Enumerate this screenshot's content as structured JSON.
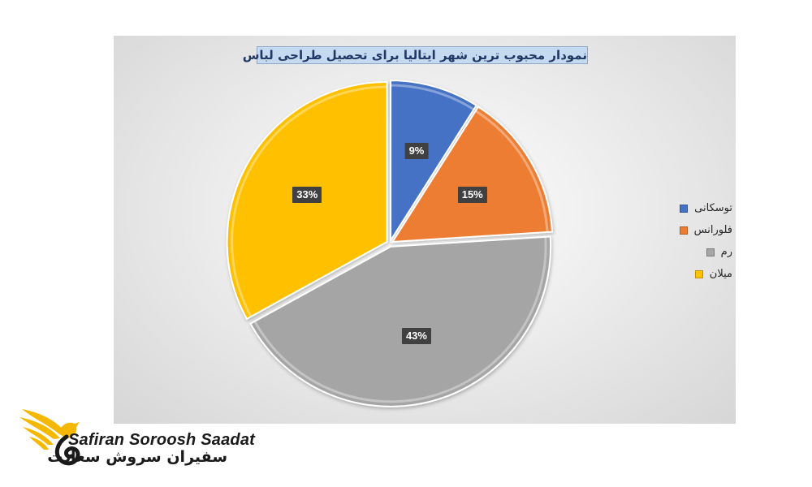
{
  "chart_data": {
    "type": "pie",
    "title": "نمودار محبوب ترین شهر ایتالیا برای تحصیل طراحی لباس",
    "categories": [
      "توسکانی",
      "فلورانس",
      "رم",
      "میلان"
    ],
    "values": [
      9,
      15,
      43,
      33
    ],
    "labels": [
      "9%",
      "15%",
      "43%",
      "33%"
    ],
    "colors": [
      "#4472c4",
      "#ed7d31",
      "#a5a5a5",
      "#ffc000"
    ],
    "legend_position": "right"
  },
  "logo": {
    "name_en": "Safiran Soroosh Saadat",
    "name_fa": "سفیران سروش سعادت",
    "accent_color": "#f5b800"
  }
}
